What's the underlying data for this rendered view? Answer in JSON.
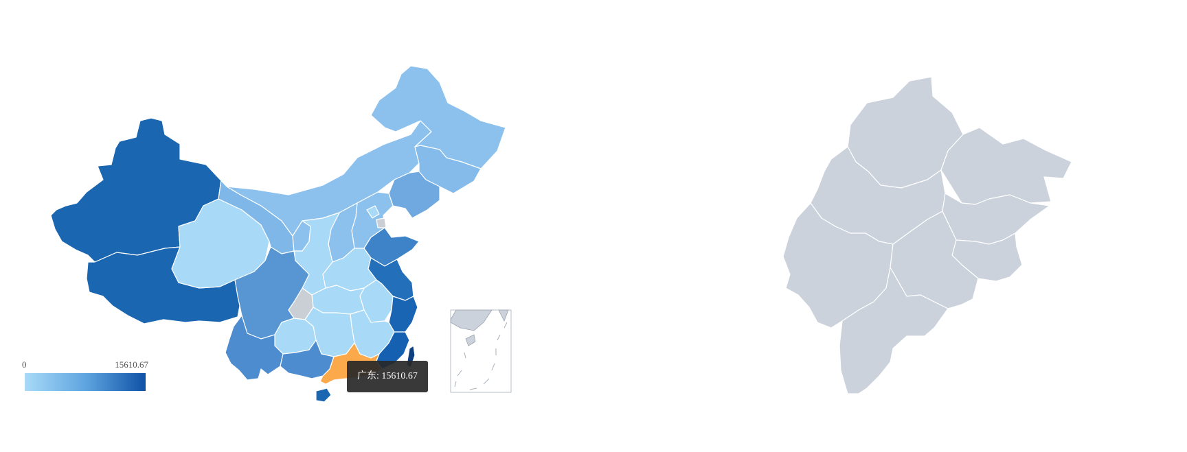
{
  "legend": {
    "min_label": "0",
    "max_label": "15610.67",
    "min_value": 0,
    "max_value": 15610.67,
    "color_low": "#a8daf7",
    "color_high": "#0f52a6"
  },
  "tooltip": {
    "text": "广东: 15610.67",
    "province": "广东",
    "value": 15610.67
  },
  "colors": {
    "highlight": "#fba94b",
    "no_data": "#cacfd6",
    "right_map": "#cbd2dc",
    "tooltip_bg": "#333333"
  },
  "provinces": [
    {
      "key": "xinjiang",
      "shade": "#1b66b1"
    },
    {
      "key": "tibet",
      "shade": "#1b66b1"
    },
    {
      "key": "qinghai",
      "shade": "#a8daf7"
    },
    {
      "key": "gansu",
      "shade": "#7fb8e8"
    },
    {
      "key": "inner-mongolia",
      "shade": "#8cc1ee"
    },
    {
      "key": "heilongjiang",
      "shade": "#8cc1ee"
    },
    {
      "key": "jilin",
      "shade": "#84bbea"
    },
    {
      "key": "liaoning",
      "shade": "#6fa9df"
    },
    {
      "key": "hebei",
      "shade": "#8cc1ee"
    },
    {
      "key": "beijing",
      "shade": "#a8daf7"
    },
    {
      "key": "tianjin",
      "shade": "#cacfd6"
    },
    {
      "key": "shanxi",
      "shade": "#8cc1ee"
    },
    {
      "key": "shaanxi",
      "shade": "#a8daf7"
    },
    {
      "key": "ningxia",
      "shade": "#8cc1ee"
    },
    {
      "key": "henan",
      "shade": "#a8daf7"
    },
    {
      "key": "shandong",
      "shade": "#3e82c8"
    },
    {
      "key": "jiangsu",
      "shade": "#236fba"
    },
    {
      "key": "anhui",
      "shade": "#a8daf7"
    },
    {
      "key": "hubei",
      "shade": "#a8daf7"
    },
    {
      "key": "chongqing",
      "shade": "#cacfd6"
    },
    {
      "key": "sichuan",
      "shade": "#5796d3"
    },
    {
      "key": "zhejiang",
      "shade": "#1a64b4"
    },
    {
      "key": "jiangxi",
      "shade": "#a8daf7"
    },
    {
      "key": "hunan",
      "shade": "#a8daf7"
    },
    {
      "key": "guizhou",
      "shade": "#a8daf7"
    },
    {
      "key": "yunnan",
      "shade": "#4c8ccf"
    },
    {
      "key": "guangxi",
      "shade": "#4c8ccf"
    },
    {
      "key": "fujian",
      "shade": "#1560b0"
    },
    {
      "key": "guangdong",
      "shade": "#fba94b"
    },
    {
      "key": "taiwan",
      "shade": "#0e3f80"
    },
    {
      "key": "hainan",
      "shade": "#1b66b1"
    }
  ]
}
